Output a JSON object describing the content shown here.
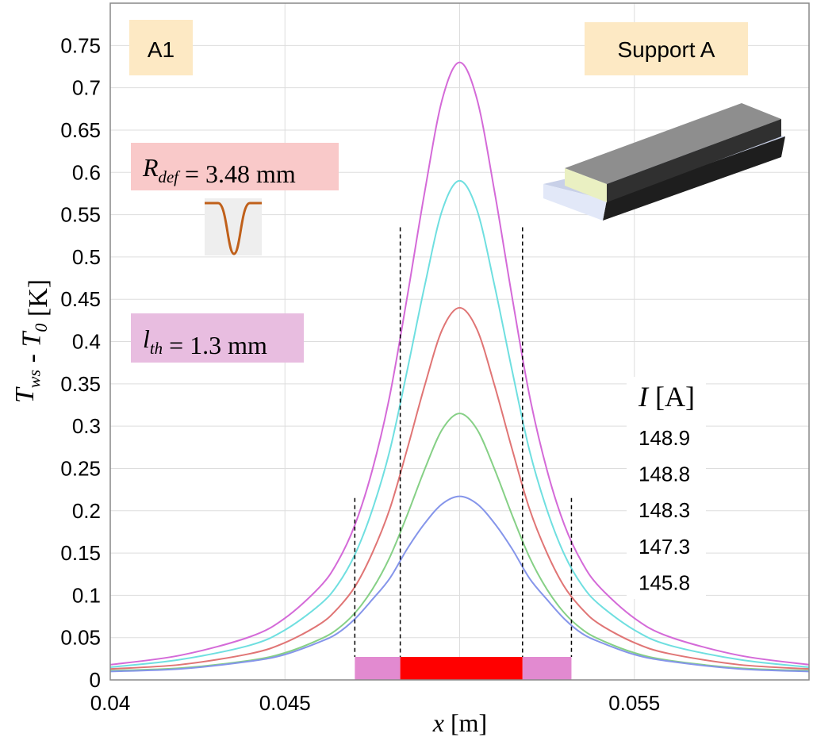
{
  "chart_data": {
    "type": "line",
    "ylabel": [
      {
        "i": "T",
        "sub": "ws"
      },
      {
        "t": " - "
      },
      {
        "i": "T",
        "sub": "0"
      },
      {
        "t": " [K]"
      }
    ],
    "xlabel": [
      {
        "i": "x"
      },
      {
        "t": " [m]"
      }
    ],
    "xlim": [
      0.04,
      0.06
    ],
    "ylim": [
      0,
      0.8
    ],
    "xticks": [
      0.04,
      0.045,
      {
        "value": 0.05,
        "label": null
      },
      0.055
    ],
    "yticks": [
      0,
      0.05,
      0.1,
      0.15,
      0.2,
      0.25,
      0.3,
      0.35,
      0.4,
      0.45,
      0.5,
      0.55,
      0.6,
      0.65,
      0.7,
      0.75
    ],
    "grid": true,
    "x": [
      0.04,
      0.042,
      0.044,
      0.045,
      0.046,
      0.0465,
      0.047,
      0.0475,
      0.048,
      0.0485,
      0.049,
      0.0495,
      0.05,
      0.0505,
      0.051,
      0.0515,
      0.052,
      0.0525,
      0.053,
      0.0535,
      0.054,
      0.055,
      0.056,
      0.058,
      0.06
    ],
    "legend_title": [
      {
        "i": "I"
      },
      {
        "t": " [A]"
      }
    ],
    "series": [
      {
        "name": "148.9",
        "color": "#d46ad8",
        "values": [
          0.018,
          0.029,
          0.051,
          0.073,
          0.11,
          0.139,
          0.183,
          0.248,
          0.336,
          0.453,
          0.577,
          0.686,
          0.73,
          0.686,
          0.577,
          0.453,
          0.336,
          0.248,
          0.183,
          0.139,
          0.11,
          0.073,
          0.051,
          0.029,
          0.018
        ]
      },
      {
        "name": "148.8",
        "color": "#6fdfe0",
        "values": [
          0.015,
          0.024,
          0.041,
          0.059,
          0.089,
          0.112,
          0.148,
          0.201,
          0.271,
          0.366,
          0.466,
          0.555,
          0.59,
          0.555,
          0.466,
          0.366,
          0.271,
          0.201,
          0.148,
          0.112,
          0.089,
          0.059,
          0.041,
          0.024,
          0.015
        ]
      },
      {
        "name": "148.3",
        "color": "#e07575",
        "values": [
          0.013,
          0.018,
          0.031,
          0.044,
          0.066,
          0.084,
          0.11,
          0.15,
          0.202,
          0.273,
          0.348,
          0.414,
          0.44,
          0.414,
          0.348,
          0.273,
          0.202,
          0.15,
          0.11,
          0.084,
          0.066,
          0.044,
          0.031,
          0.018,
          0.013
        ]
      },
      {
        "name": "147.3",
        "color": "#86d086",
        "values": [
          0.011,
          0.014,
          0.023,
          0.032,
          0.048,
          0.06,
          0.079,
          0.107,
          0.145,
          0.195,
          0.249,
          0.296,
          0.315,
          0.296,
          0.249,
          0.195,
          0.145,
          0.107,
          0.079,
          0.06,
          0.048,
          0.032,
          0.023,
          0.014,
          0.011
        ]
      },
      {
        "name": "145.8",
        "color": "#8595ea",
        "values": [
          0.01,
          0.013,
          0.022,
          0.03,
          0.045,
          0.055,
          0.072,
          0.095,
          0.12,
          0.155,
          0.185,
          0.208,
          0.217,
          0.208,
          0.185,
          0.155,
          0.12,
          0.095,
          0.072,
          0.055,
          0.045,
          0.03,
          0.022,
          0.013,
          0.01
        ]
      }
    ],
    "regions": [
      {
        "x0": 0.047,
        "x1": 0.0483,
        "color": "#e28ad0"
      },
      {
        "x0": 0.0483,
        "x1": 0.0518,
        "color": "#ff0000"
      },
      {
        "x0": 0.0518,
        "x1": 0.0532,
        "color": "#e28ad0"
      }
    ],
    "markers": [
      {
        "x": 0.047,
        "top": 0.215
      },
      {
        "x": 0.0483,
        "top": 0.535
      },
      {
        "x": 0.0518,
        "top": 0.535
      },
      {
        "x": 0.0532,
        "top": 0.215
      }
    ],
    "annotations": {
      "panel": "A1",
      "support": "Support A",
      "radius": [
        {
          "i": "R",
          "sub": "def"
        },
        {
          "t": " = 3.48 mm"
        }
      ],
      "thickness": [
        {
          "i": "l",
          "sub": "th"
        },
        {
          "t": " = 1.3 mm"
        }
      ]
    }
  }
}
